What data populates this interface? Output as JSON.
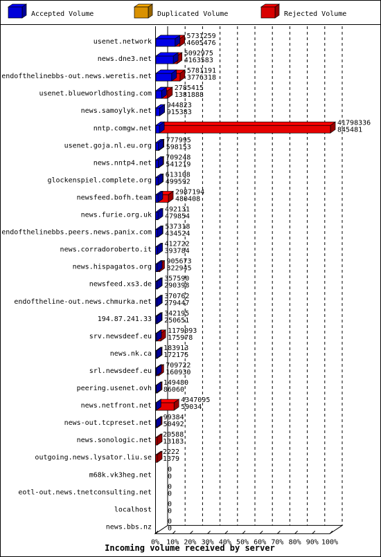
{
  "chart_data": {
    "type": "bar",
    "orientation": "horizontal",
    "stacked": true,
    "title": "",
    "xlabel": "Incoming volume received by server",
    "ylabel": "",
    "xlim": [
      0,
      100
    ],
    "x_ticks": [
      "0%",
      "10%",
      "20%",
      "30%",
      "40%",
      "50%",
      "60%",
      "70%",
      "80%",
      "90%",
      "100%"
    ],
    "grid": "vertical dashed",
    "legend": {
      "placement": "top",
      "entries": [
        {
          "name": "Accepted Volume",
          "color": "#0000ff"
        },
        {
          "name": "Duplicated Volume",
          "color": "#ffaa00"
        },
        {
          "name": "Rejected Volume",
          "color": "#ff0000"
        }
      ]
    },
    "rows": [
      {
        "server": "usenet.network",
        "total": 5731259,
        "accepted": 4605476,
        "label_total": "5731259",
        "label_accepted": "4605476"
      },
      {
        "server": "news.dne3.net",
        "total": 5092975,
        "accepted": 4163583,
        "label_total": "5092975",
        "label_accepted": "4163583"
      },
      {
        "server": "endofthelinebbs-out.news.weretis.net",
        "total": 5781191,
        "accepted": 3776318,
        "label_total": "5781191",
        "label_accepted": "3776318"
      },
      {
        "server": "usenet.blueworldhosting.com",
        "total": 2785415,
        "accepted": 1381888,
        "label_total": "2785415",
        "label_accepted": "1381888"
      },
      {
        "server": "news.samoylyk.net",
        "total": 944823,
        "accepted": 915383,
        "label_total": "944823",
        "label_accepted": "915383"
      },
      {
        "server": "nntp.comgw.net",
        "total": 41798336,
        "accepted": 845481,
        "label_total": "41798336",
        "label_accepted": "845481"
      },
      {
        "server": "usenet.goja.nl.eu.org",
        "total": 777995,
        "accepted": 598153,
        "label_total": "777995",
        "label_accepted": "598153"
      },
      {
        "server": "news.nntp4.net",
        "total": 709248,
        "accepted": 541219,
        "label_total": "709248",
        "label_accepted": "541219"
      },
      {
        "server": "glockenspiel.complete.org",
        "total": 613108,
        "accepted": 499592,
        "label_total": "613108",
        "label_accepted": "499592"
      },
      {
        "server": "newsfeed.bofh.team",
        "total": 2987194,
        "accepted": 480408,
        "label_total": "2987194",
        "label_accepted": "480408"
      },
      {
        "server": "news.furie.org.uk",
        "total": 492131,
        "accepted": 479854,
        "label_total": "492131",
        "label_accepted": "479854"
      },
      {
        "server": "endofthelinebbs.peers.news.panix.com",
        "total": 537318,
        "accepted": 434524,
        "label_total": "537318",
        "label_accepted": "434524"
      },
      {
        "server": "news.corradoroberto.it",
        "total": 412722,
        "accepted": 393784,
        "label_total": "412722",
        "label_accepted": "393784"
      },
      {
        "server": "news.hispagatos.org",
        "total": 905673,
        "accepted": 322945,
        "label_total": "905673",
        "label_accepted": "322945"
      },
      {
        "server": "newsfeed.xs3.de",
        "total": 357590,
        "accepted": 290398,
        "label_total": "357590",
        "label_accepted": "290398"
      },
      {
        "server": "endoftheline-out.news.chmurka.net",
        "total": 370762,
        "accepted": 279447,
        "label_total": "370762",
        "label_accepted": "279447"
      },
      {
        "server": "194.87.241.33",
        "total": 342195,
        "accepted": 250651,
        "label_total": "342195",
        "label_accepted": "250651"
      },
      {
        "server": "srv.newsdeef.eu",
        "total": 1179093,
        "accepted": 175978,
        "label_total": "1179093",
        "label_accepted": "175978"
      },
      {
        "server": "news.nk.ca",
        "total": 183913,
        "accepted": 172175,
        "label_total": "183913",
        "label_accepted": "172175"
      },
      {
        "server": "srl.newsdeef.eu",
        "total": 709722,
        "accepted": 160930,
        "label_total": "709722",
        "label_accepted": "160930"
      },
      {
        "server": "peering.usenet.ovh",
        "total": 149480,
        "accepted": 86060,
        "label_total": "149480",
        "label_accepted": "86060"
      },
      {
        "server": "news.netfront.net",
        "total": 4347095,
        "accepted": 59034,
        "label_total": "4347095",
        "label_accepted": "59034"
      },
      {
        "server": "news-out.tcpreset.net",
        "total": 99384,
        "accepted": 50492,
        "label_total": "99384",
        "label_accepted": "50492"
      },
      {
        "server": "news.sonologic.net",
        "total": 20588,
        "accepted": 13183,
        "label_total": "20588",
        "label_accepted": "13183"
      },
      {
        "server": "outgoing.news.lysator.liu.se",
        "total": 2222,
        "accepted": 1379,
        "label_total": "2222",
        "label_accepted": "1379"
      },
      {
        "server": "m68k.vk3heg.net",
        "total": 0,
        "accepted": 0,
        "label_total": "0",
        "label_accepted": "0"
      },
      {
        "server": "eotl-out.news.tnetconsulting.net",
        "total": 0,
        "accepted": 0,
        "label_total": "0",
        "label_accepted": "0"
      },
      {
        "server": "localhost",
        "total": 0,
        "accepted": 0,
        "label_total": "0",
        "label_accepted": "0"
      },
      {
        "server": "news.bbs.nz",
        "total": 0,
        "accepted": 0,
        "label_total": "0",
        "label_accepted": "0"
      }
    ]
  }
}
